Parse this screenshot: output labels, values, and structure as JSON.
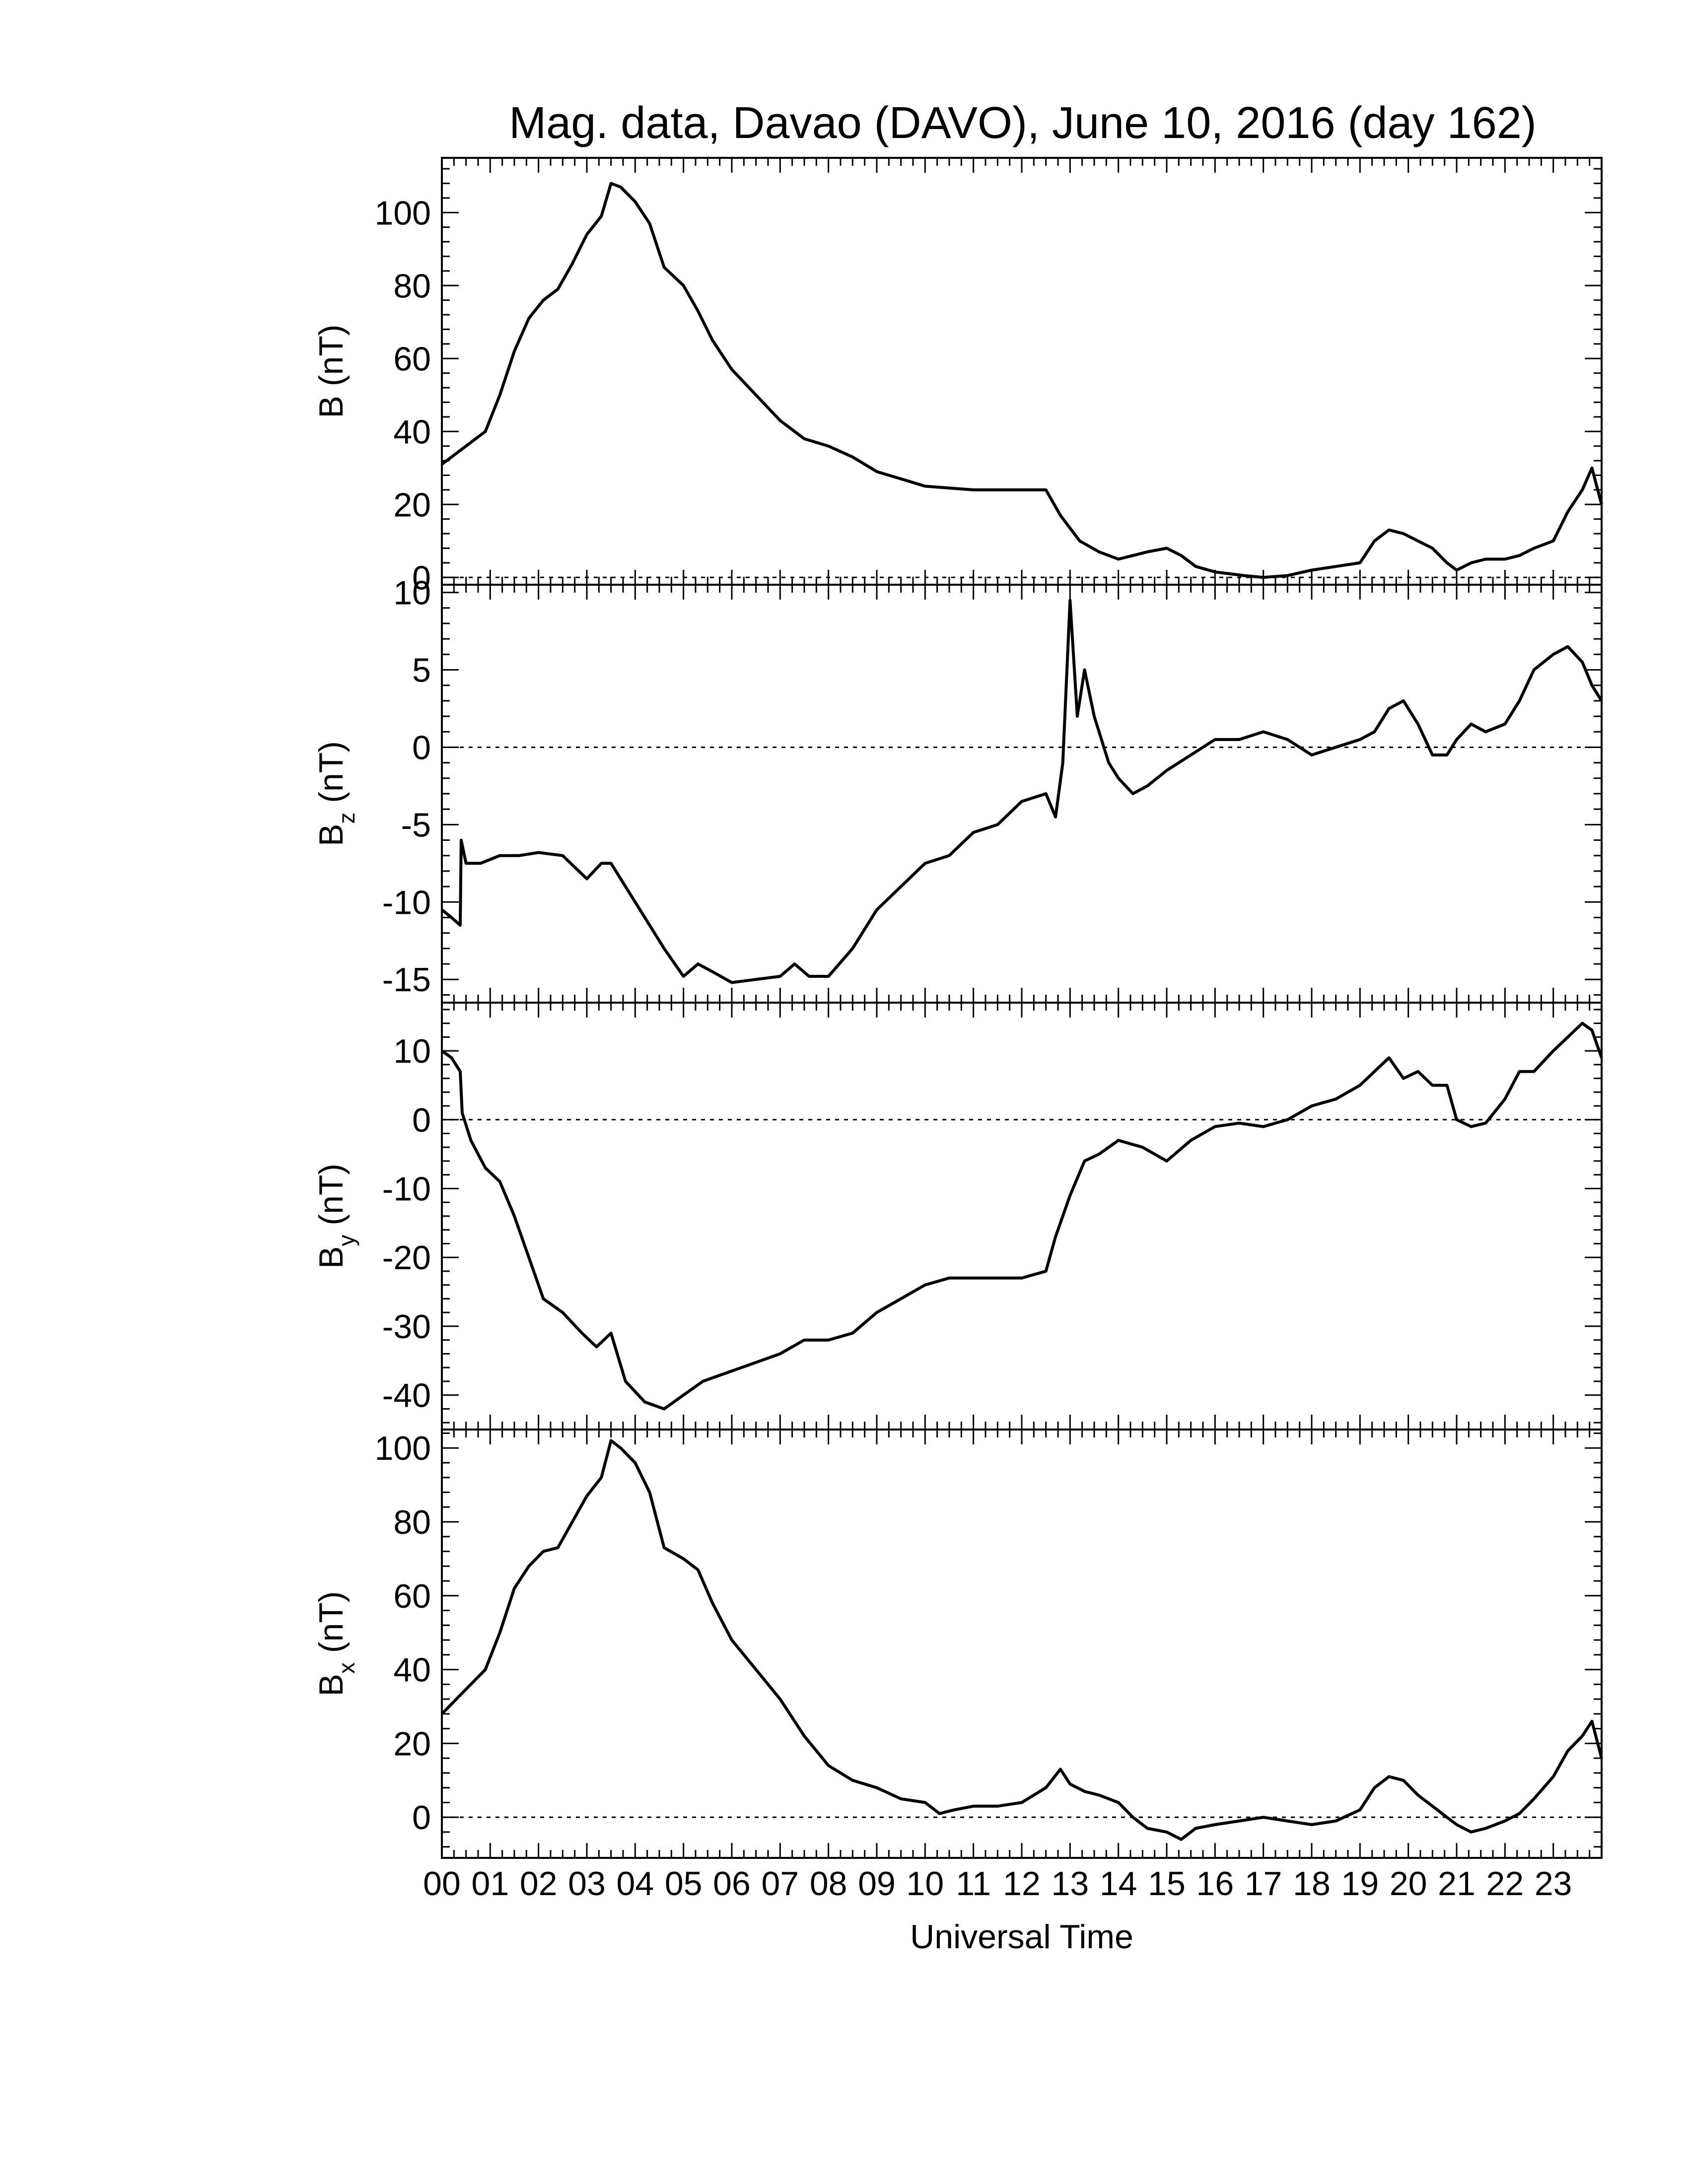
{
  "chart_data": {
    "type": "line",
    "title": "Mag. data, Davao (DAVO), June 10, 2016 (day 162)",
    "xlabel": "Universal Time",
    "x_tick_labels": [
      "00",
      "01",
      "02",
      "03",
      "04",
      "05",
      "06",
      "07",
      "08",
      "09",
      "10",
      "11",
      "12",
      "13",
      "14",
      "15",
      "16",
      "17",
      "18",
      "19",
      "20",
      "21",
      "22",
      "23"
    ],
    "xlim": [
      0,
      24
    ],
    "line_color": "#000000",
    "zero_line": "dotted",
    "panels": [
      {
        "id": "B",
        "ylabel_main": "B",
        "ylabel_sub": "",
        "ylabel_unit": " (nT)",
        "ylim": [
          -2,
          115
        ],
        "y_ticks": [
          0,
          20,
          40,
          60,
          80,
          100
        ],
        "y_tick_labels": [
          "0",
          "20",
          "40",
          "60",
          "80",
          "100"
        ],
        "x": [
          0,
          0.3,
          0.6,
          0.9,
          1.2,
          1.5,
          1.8,
          2.1,
          2.4,
          2.7,
          3.0,
          3.3,
          3.5,
          3.7,
          4.0,
          4.3,
          4.6,
          5.0,
          5.3,
          5.6,
          6.0,
          6.5,
          7.0,
          7.5,
          8.0,
          8.5,
          9.0,
          9.5,
          10.0,
          10.5,
          11.0,
          11.5,
          12.0,
          12.5,
          12.8,
          13.2,
          13.6,
          14.0,
          14.3,
          14.6,
          15.0,
          15.3,
          15.6,
          16.0,
          16.3,
          16.6,
          17.0,
          17.5,
          18.0,
          18.5,
          19.0,
          19.3,
          19.6,
          19.9,
          20.2,
          20.5,
          20.8,
          21.0,
          21.3,
          21.6,
          22.0,
          22.3,
          22.6,
          23.0,
          23.3,
          23.6,
          23.8,
          24.0
        ],
        "y": [
          31,
          34,
          37,
          40,
          50,
          62,
          71,
          76,
          79,
          86,
          94,
          99,
          108,
          107,
          103,
          97,
          85,
          80,
          73,
          65,
          57,
          50,
          43,
          38,
          36,
          33,
          29,
          27,
          25,
          24.5,
          24,
          24,
          24,
          24,
          17,
          10,
          7,
          5,
          6,
          7,
          8,
          6,
          3,
          1.5,
          1,
          0.5,
          0,
          0.5,
          2,
          3,
          4,
          10,
          13,
          12,
          10,
          8,
          4,
          2,
          4,
          5,
          5,
          6,
          8,
          10,
          18,
          24,
          30,
          20
        ]
      },
      {
        "id": "Bz",
        "ylabel_main": "B",
        "ylabel_sub": "z",
        "ylabel_unit": " (nT)",
        "ylim": [
          -16.5,
          10.5
        ],
        "y_ticks": [
          -15,
          -10,
          -5,
          0,
          5,
          10
        ],
        "y_tick_labels": [
          "-15",
          "-10",
          "-5",
          "0",
          "5",
          "10"
        ],
        "x": [
          0,
          0.2,
          0.38,
          0.4,
          0.5,
          0.8,
          1.2,
          1.6,
          2.0,
          2.5,
          3.0,
          3.3,
          3.5,
          3.8,
          4.2,
          4.6,
          5.0,
          5.3,
          5.6,
          6.0,
          6.5,
          7.0,
          7.3,
          7.6,
          8.0,
          8.5,
          9.0,
          9.5,
          10.0,
          10.5,
          11.0,
          11.5,
          12.0,
          12.5,
          12.7,
          12.85,
          13.0,
          13.15,
          13.3,
          13.5,
          13.8,
          14.0,
          14.3,
          14.6,
          15.0,
          15.5,
          16.0,
          16.5,
          17.0,
          17.5,
          18.0,
          18.5,
          19.0,
          19.3,
          19.6,
          19.9,
          20.2,
          20.5,
          20.8,
          21.0,
          21.3,
          21.6,
          22.0,
          22.3,
          22.6,
          23.0,
          23.3,
          23.6,
          23.8,
          24.0
        ],
        "y": [
          -10.5,
          -11,
          -11.5,
          -6,
          -7.5,
          -7.5,
          -7,
          -7,
          -6.8,
          -7,
          -8.5,
          -7.5,
          -7.5,
          -9,
          -11,
          -13,
          -14.8,
          -14,
          -14.5,
          -15.2,
          -15,
          -14.8,
          -14,
          -14.8,
          -14.8,
          -13,
          -10.5,
          -9,
          -7.5,
          -7,
          -5.5,
          -5,
          -3.5,
          -3,
          -4.5,
          -1,
          9.5,
          2,
          5,
          2,
          -1,
          -2,
          -3,
          -2.5,
          -1.5,
          -0.5,
          0.5,
          0.5,
          1,
          0.5,
          -0.5,
          0,
          0.5,
          1,
          2.5,
          3,
          1.5,
          -0.5,
          -0.5,
          0.5,
          1.5,
          1,
          1.5,
          3,
          5,
          6,
          6.5,
          5.5,
          4,
          3
        ]
      },
      {
        "id": "By",
        "ylabel_main": "B",
        "ylabel_sub": "y",
        "ylabel_unit": " (nT)",
        "ylim": [
          -45,
          17
        ],
        "y_ticks": [
          -40,
          -30,
          -20,
          -10,
          0,
          10
        ],
        "y_tick_labels": [
          "-40",
          "-30",
          "-20",
          "-10",
          "0",
          "10"
        ],
        "x": [
          0,
          0.2,
          0.38,
          0.42,
          0.6,
          0.9,
          1.2,
          1.5,
          1.8,
          2.1,
          2.5,
          2.9,
          3.2,
          3.5,
          3.8,
          4.2,
          4.6,
          5.0,
          5.4,
          5.8,
          6.2,
          6.6,
          7.0,
          7.5,
          8.0,
          8.5,
          9.0,
          9.5,
          10.0,
          10.5,
          11.0,
          11.5,
          12.0,
          12.5,
          12.7,
          13.0,
          13.3,
          13.6,
          14.0,
          14.5,
          15.0,
          15.5,
          16.0,
          16.5,
          17.0,
          17.5,
          18.0,
          18.5,
          19.0,
          19.3,
          19.6,
          19.9,
          20.2,
          20.5,
          20.8,
          21.0,
          21.3,
          21.6,
          22.0,
          22.3,
          22.6,
          23.0,
          23.3,
          23.6,
          23.8,
          24.0
        ],
        "y": [
          10,
          9,
          7,
          1,
          -3,
          -7,
          -9,
          -14,
          -20,
          -26,
          -28,
          -31,
          -33,
          -31,
          -38,
          -41,
          -42,
          -40,
          -38,
          -37,
          -36,
          -35,
          -34,
          -32,
          -32,
          -31,
          -28,
          -26,
          -24,
          -23,
          -23,
          -23,
          -23,
          -22,
          -17,
          -11,
          -6,
          -5,
          -3,
          -4,
          -6,
          -3,
          -1,
          -0.5,
          -1,
          0,
          2,
          3,
          5,
          7,
          9,
          6,
          7,
          5,
          5,
          0,
          -1,
          -0.5,
          3,
          7,
          7,
          10,
          12,
          14,
          13,
          9
        ]
      },
      {
        "id": "Bx",
        "ylabel_main": "B",
        "ylabel_sub": "x",
        "ylabel_unit": " (nT)",
        "ylim": [
          -11,
          105
        ],
        "y_ticks": [
          0,
          20,
          40,
          60,
          80,
          100
        ],
        "y_tick_labels": [
          "0",
          "20",
          "40",
          "60",
          "80",
          "100"
        ],
        "x": [
          0,
          0.3,
          0.6,
          0.9,
          1.2,
          1.5,
          1.8,
          2.1,
          2.4,
          2.7,
          3.0,
          3.3,
          3.5,
          3.7,
          4.0,
          4.3,
          4.6,
          5.0,
          5.3,
          5.6,
          6.0,
          6.5,
          7.0,
          7.5,
          8.0,
          8.5,
          9.0,
          9.5,
          10.0,
          10.3,
          10.6,
          11.0,
          11.5,
          12.0,
          12.5,
          12.8,
          13.0,
          13.3,
          13.6,
          14.0,
          14.3,
          14.6,
          15.0,
          15.3,
          15.6,
          16.0,
          16.5,
          17.0,
          17.5,
          18.0,
          18.5,
          19.0,
          19.3,
          19.6,
          19.9,
          20.2,
          20.5,
          20.8,
          21.0,
          21.3,
          21.6,
          22.0,
          22.3,
          22.6,
          23.0,
          23.3,
          23.6,
          23.8,
          24.0
        ],
        "y": [
          28,
          32,
          36,
          40,
          50,
          62,
          68,
          72,
          73,
          80,
          87,
          92,
          102,
          100,
          96,
          88,
          73,
          70,
          67,
          58,
          48,
          40,
          32,
          22,
          14,
          10,
          8,
          5,
          4,
          1,
          2,
          3,
          3,
          4,
          8,
          13,
          9,
          7,
          6,
          4,
          0,
          -3,
          -4,
          -6,
          -3,
          -2,
          -1,
          0,
          -1,
          -2,
          -1,
          2,
          8,
          11,
          10,
          6,
          3,
          0,
          -2,
          -4,
          -3,
          -1,
          1,
          5,
          11,
          18,
          22,
          26,
          16
        ]
      }
    ]
  }
}
